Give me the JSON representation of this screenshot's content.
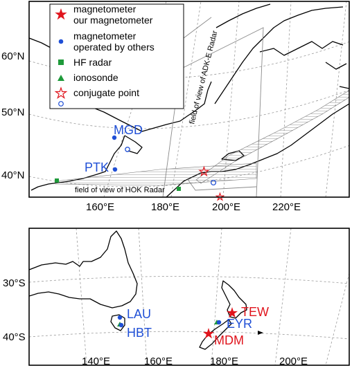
{
  "legend": {
    "items": [
      {
        "symbol": "red-star",
        "lines": [
          "magnetometer",
          "our magnetometer"
        ]
      },
      {
        "symbol": "blue-dot",
        "lines": [
          "magnetometer",
          "operated by others"
        ]
      },
      {
        "symbol": "green-square",
        "lines": [
          "HF radar"
        ]
      },
      {
        "symbol": "green-triangle",
        "lines": [
          "ionosonde"
        ]
      },
      {
        "symbol": "open-red-star-blue-circle",
        "lines": [
          "conjugate point"
        ]
      }
    ]
  },
  "top_map": {
    "lat_labels": [
      "60°N",
      "50°N",
      "40°N"
    ],
    "lon_labels": [
      "160°E",
      "180°E",
      "200°E",
      "220°E"
    ],
    "fov_labels": {
      "adk": "field of view of ADK-E Radar",
      "hok": "field of view of HOK Radar"
    },
    "stations": {
      "mgd": "MGD",
      "ptk": "PTK"
    }
  },
  "bottom_map": {
    "lat_labels": [
      "30°S",
      "40°S"
    ],
    "lon_labels": [
      "140°E",
      "160°E",
      "180°E",
      "200°E"
    ],
    "stations": {
      "lau": "LAU",
      "hbt": "HBT",
      "tew": "TEW",
      "eyr": "EYR",
      "mdm": "MDM"
    }
  },
  "colors": {
    "red": "#e0141c",
    "blue": "#1f4fd6",
    "green": "#1e9a3a"
  }
}
